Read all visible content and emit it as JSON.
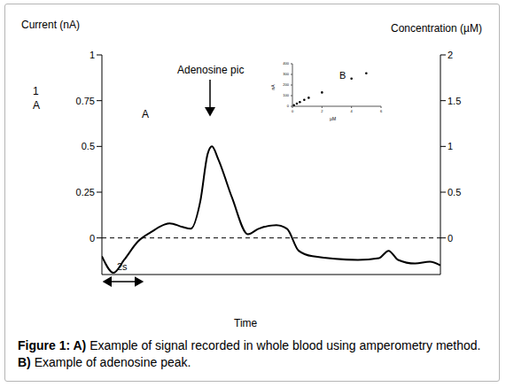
{
  "chart_data": [
    {
      "type": "line",
      "x_label": "Time",
      "y_label": "Current (nA)",
      "y2_label": "Concentration (µM)",
      "x": [
        0,
        0.55,
        1.05,
        1.7,
        2.3,
        3.2,
        3.8,
        4.2,
        4.65,
        5.0,
        5.2,
        5.5,
        6.15,
        6.9,
        7.4,
        8.25,
        8.75,
        9.3,
        9.95,
        12.1,
        13.1,
        13.55,
        14.0,
        14.8,
        15.5,
        16.0
      ],
      "values": [
        -0.1,
        -0.19,
        -0.12,
        -0.02,
        0.03,
        0.08,
        0.06,
        0.05,
        0.2,
        0.46,
        0.5,
        0.43,
        0.22,
        0.02,
        0.05,
        0.07,
        0.05,
        -0.07,
        -0.1,
        -0.12,
        -0.11,
        -0.07,
        -0.12,
        -0.14,
        -0.13,
        -0.15
      ],
      "color": "#000000",
      "xlim": [
        0,
        16
      ],
      "xticks": [
        0,
        2,
        4,
        6,
        8,
        10,
        12,
        14,
        16
      ],
      "ylim": [
        -0.2,
        1
      ],
      "yticks": [
        0,
        0.25,
        0.5,
        0.75,
        1
      ],
      "y2lim": [
        -0.4,
        2
      ],
      "y2ticks": [
        0,
        0.5,
        1,
        1.5,
        2
      ],
      "tick_labels": "y",
      "annotations": [
        "Adenosine pic",
        "A",
        "1",
        "A"
      ],
      "scale_bar": {
        "label": "2s",
        "value": 2
      },
      "reference_lines": [
        {
          "y": 0,
          "line_style": "dashed"
        }
      ]
    },
    {
      "type": "scatter",
      "title": "B",
      "x_label": "µM",
      "y_label": "nA",
      "x": [
        0.1,
        0.3,
        0.5,
        0.8,
        1.1,
        2,
        4,
        5
      ],
      "values": [
        10,
        25,
        40,
        60,
        80,
        130,
        260,
        310
      ],
      "color": "#000000",
      "xlim": [
        0,
        6
      ],
      "xticks": [
        0,
        2,
        4,
        6
      ],
      "ylim": [
        0,
        400
      ],
      "yticks": [
        0,
        100,
        200,
        300,
        400
      ]
    }
  ],
  "caption": "Figure 1: A) Example of signal recorded in whole blood using amperometry method. B) Example of adenosine peak."
}
